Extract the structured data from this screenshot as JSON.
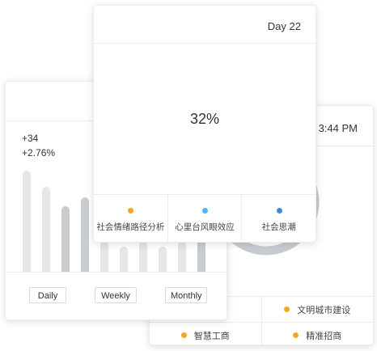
{
  "colors": {
    "orange": "#f5a623",
    "light_blue": "#4db8f0",
    "blue": "#3d8ae6",
    "bar_light": "#e6e6e6",
    "bar_dark": "#c8ccd0",
    "donut": "#c8ccd0"
  },
  "time_card": {
    "time": "3:44 PM",
    "legend": [
      {
        "label": "",
        "color": "#f5a623"
      },
      {
        "label": "文明城市建设",
        "color": "#f5a623"
      },
      {
        "label": "智慧工商",
        "color": "#f5a623"
      },
      {
        "label": "精准招商",
        "color": "#f5a623"
      }
    ]
  },
  "bars_card": {
    "stat_count": "+34",
    "stat_percent": "+2.76%",
    "bars": [
      {
        "value": 1.0,
        "tone": "light"
      },
      {
        "value": 0.84,
        "tone": "light"
      },
      {
        "value": 0.65,
        "tone": "dark"
      },
      {
        "value": 0.74,
        "tone": "dark"
      },
      {
        "value": 0.3,
        "tone": "light"
      },
      {
        "value": 0.25,
        "tone": "light"
      },
      {
        "value": 0.3,
        "tone": "light"
      },
      {
        "value": 0.25,
        "tone": "light"
      },
      {
        "value": 0.3,
        "tone": "light"
      },
      {
        "value": 0.35,
        "tone": "dark"
      }
    ],
    "buttons": [
      "Daily",
      "Weekly",
      "Monthly"
    ]
  },
  "front_card": {
    "day": "Day 22",
    "percent": "32%",
    "items": [
      {
        "label": "社会情绪路径分析",
        "color": "#f5a623"
      },
      {
        "label": "心里台风眼效应",
        "color": "#4db8f0"
      },
      {
        "label": "社会思潮",
        "color": "#3d8ae6"
      }
    ]
  }
}
